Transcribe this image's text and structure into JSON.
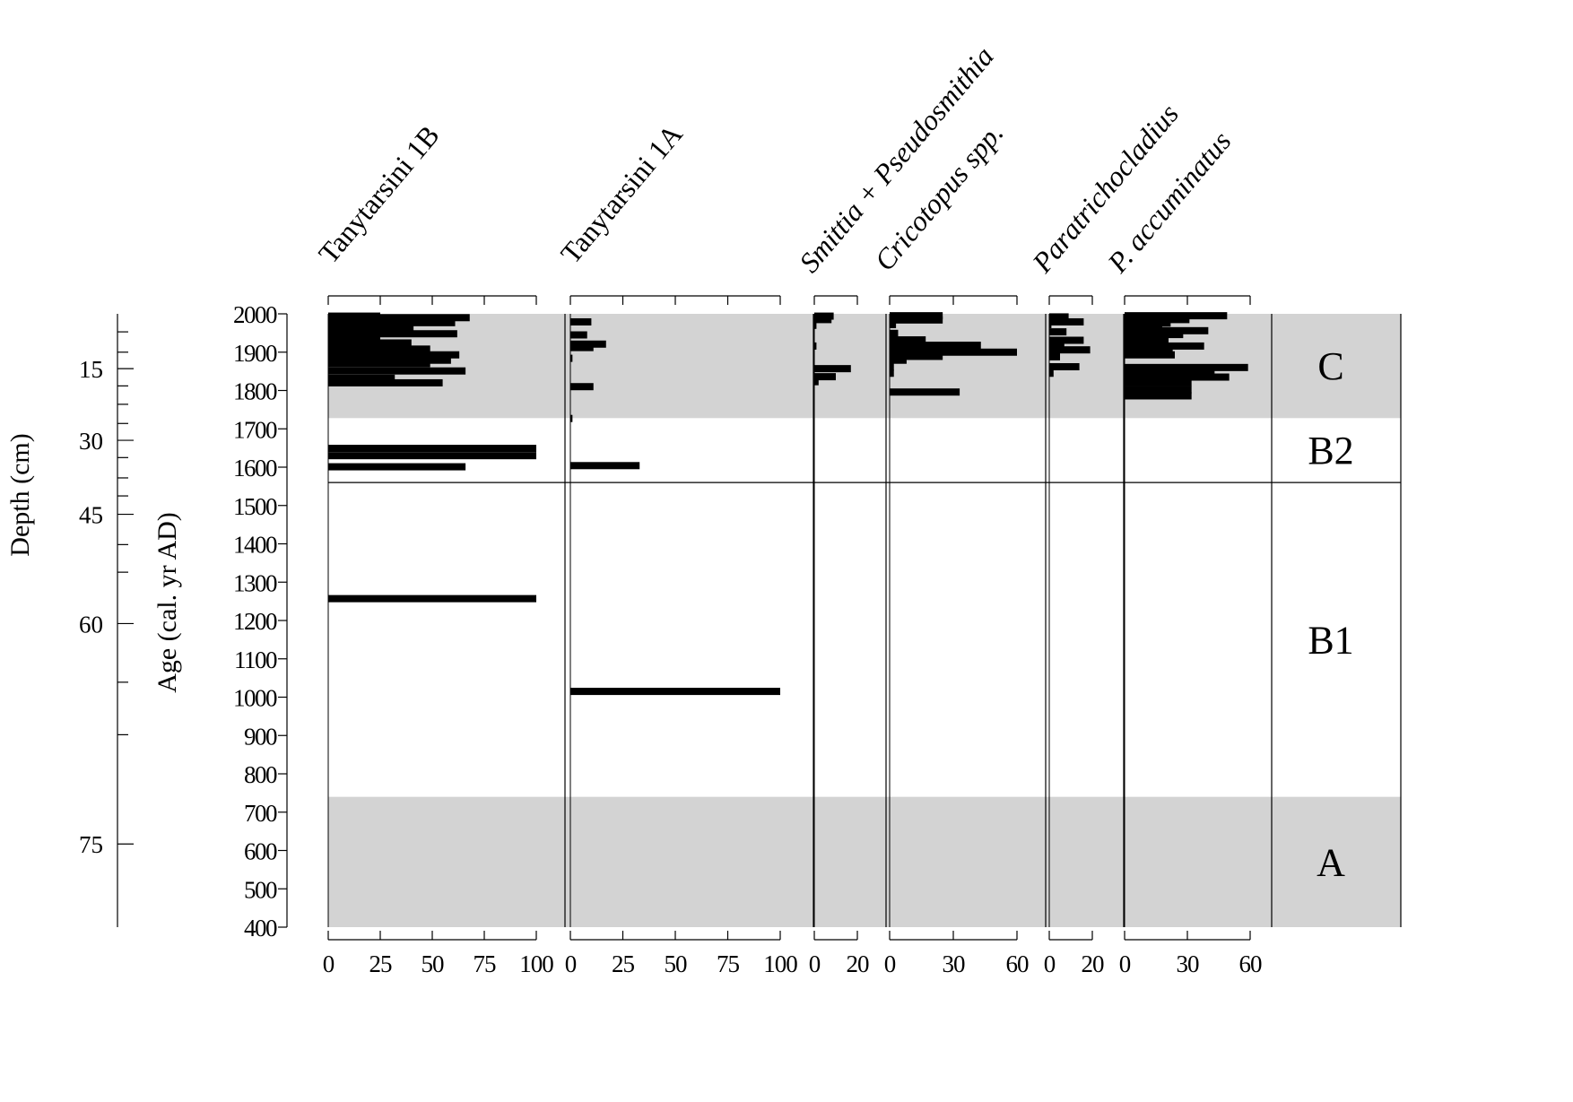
{
  "chart_data": {
    "type": "bar",
    "subtype": "stratigraphic-percentage-diagram",
    "age_axis": {
      "label": "Age (cal. yr AD)",
      "range": [
        400,
        2000
      ],
      "ticks": [
        400,
        500,
        600,
        700,
        800,
        900,
        1000,
        1100,
        1200,
        1300,
        1400,
        1500,
        1600,
        1700,
        1800,
        1900,
        2000
      ]
    },
    "depth_axis": {
      "label": "Depth (cm)",
      "ticks": [
        {
          "label": "15",
          "age": 1857
        },
        {
          "label": "30",
          "age": 1670
        },
        {
          "label": "45",
          "age": 1477
        },
        {
          "label": "60",
          "age": 1192
        },
        {
          "label": "75",
          "age": 617
        }
      ],
      "minor_ages": [
        1953,
        1900,
        1812,
        1764,
        1714,
        1625,
        1572,
        1525,
        1398,
        1326,
        1039,
        902
      ]
    },
    "zones": [
      {
        "label": "C",
        "from": 1728,
        "to": 2000,
        "shaded": true
      },
      {
        "label": "B2",
        "from": 1560,
        "to": 1728,
        "shaded": false
      },
      {
        "label": "B1",
        "from": 740,
        "to": 1560,
        "shaded": false
      },
      {
        "label": "A",
        "from": 400,
        "to": 740,
        "shaded": true
      }
    ],
    "zone_boundary_age": 1560,
    "series": [
      {
        "name": "Tanytarsini 1B",
        "italic": false,
        "xlim": [
          0,
          100
        ],
        "ticks": [
          0,
          25,
          50,
          75,
          100
        ],
        "bars": [
          {
            "age": 1994,
            "value": 25
          },
          {
            "age": 1990,
            "value": 68
          },
          {
            "age": 1985,
            "value": 30
          },
          {
            "age": 1977,
            "value": 61
          },
          {
            "age": 1970,
            "value": 0
          },
          {
            "age": 1961,
            "value": 41
          },
          {
            "age": 1955,
            "value": 23
          },
          {
            "age": 1948,
            "value": 62
          },
          {
            "age": 1942,
            "value": 25
          },
          {
            "age": 1933,
            "value": 15
          },
          {
            "age": 1924,
            "value": 40
          },
          {
            "age": 1917,
            "value": 11
          },
          {
            "age": 1908,
            "value": 49
          },
          {
            "age": 1901,
            "value": 9
          },
          {
            "age": 1893,
            "value": 63
          },
          {
            "age": 1887,
            "value": 11
          },
          {
            "age": 1879,
            "value": 59
          },
          {
            "age": 1870,
            "value": 49
          },
          {
            "age": 1851,
            "value": 66
          },
          {
            "age": 1832,
            "value": 32
          },
          {
            "age": 1820,
            "value": 55
          },
          {
            "age": 1649,
            "value": 100
          },
          {
            "age": 1630,
            "value": 100
          },
          {
            "age": 1601,
            "value": 66
          },
          {
            "age": 1257,
            "value": 100
          }
        ]
      },
      {
        "name": "Tanytarsini 1A",
        "italic": false,
        "xlim": [
          0,
          100
        ],
        "ticks": [
          0,
          25,
          50,
          75,
          100
        ],
        "bars": [
          {
            "age": 1979,
            "value": 10
          },
          {
            "age": 1945,
            "value": 8
          },
          {
            "age": 1921,
            "value": 17
          },
          {
            "age": 1912,
            "value": 11
          },
          {
            "age": 1884,
            "value": 1
          },
          {
            "age": 1810,
            "value": 11
          },
          {
            "age": 1727,
            "value": 1
          },
          {
            "age": 1604,
            "value": 33
          },
          {
            "age": 1015,
            "value": 100
          }
        ]
      },
      {
        "name": "Smittia + Pseudosmithia",
        "italic": true,
        "xlim": [
          0,
          20
        ],
        "ticks": [
          0,
          20
        ],
        "bars": [
          {
            "age": 1994,
            "value": 9
          },
          {
            "age": 1985,
            "value": 8
          },
          {
            "age": 1970,
            "value": 1
          },
          {
            "age": 1916,
            "value": 1
          },
          {
            "age": 1857,
            "value": 17
          },
          {
            "age": 1836,
            "value": 10
          },
          {
            "age": 1823,
            "value": 2
          }
        ]
      },
      {
        "name": "Cricotopus spp.",
        "italic": true,
        "xlim": [
          0,
          60
        ],
        "ticks": [
          0,
          30,
          60
        ],
        "bars": [
          {
            "age": 1995,
            "value": 25
          },
          {
            "age": 1984,
            "value": 25
          },
          {
            "age": 1972,
            "value": 3
          },
          {
            "age": 1949,
            "value": 4
          },
          {
            "age": 1932,
            "value": 17
          },
          {
            "age": 1918,
            "value": 43
          },
          {
            "age": 1900,
            "value": 60
          },
          {
            "age": 1889,
            "value": 25
          },
          {
            "age": 1879,
            "value": 8
          },
          {
            "age": 1861,
            "value": 2
          },
          {
            "age": 1845,
            "value": 2
          },
          {
            "age": 1796,
            "value": 33
          }
        ]
      },
      {
        "name": "Paratrichocladius",
        "italic": true,
        "xlim": [
          0,
          20
        ],
        "ticks": [
          0,
          20
        ],
        "bars": [
          {
            "age": 1992,
            "value": 9
          },
          {
            "age": 1979,
            "value": 16
          },
          {
            "age": 1972,
            "value": 1
          },
          {
            "age": 1953,
            "value": 8
          },
          {
            "age": 1931,
            "value": 16
          },
          {
            "age": 1918,
            "value": 7
          },
          {
            "age": 1906,
            "value": 19
          },
          {
            "age": 1888,
            "value": 5
          },
          {
            "age": 1862,
            "value": 14
          },
          {
            "age": 1845,
            "value": 2
          }
        ]
      },
      {
        "name": "P. accuminatus",
        "italic": true,
        "xlim": [
          0,
          60
        ],
        "ticks": [
          0,
          30,
          60
        ],
        "bars": [
          {
            "age": 1995,
            "value": 49
          },
          {
            "age": 1985,
            "value": 31
          },
          {
            "age": 1976,
            "value": 22
          },
          {
            "age": 1968,
            "value": 18
          },
          {
            "age": 1956,
            "value": 40
          },
          {
            "age": 1946,
            "value": 28
          },
          {
            "age": 1930,
            "value": 21
          },
          {
            "age": 1916,
            "value": 38
          },
          {
            "age": 1904,
            "value": 23
          },
          {
            "age": 1893,
            "value": 24
          },
          {
            "age": 1860,
            "value": 59
          },
          {
            "age": 1848,
            "value": 43
          },
          {
            "age": 1835,
            "value": 50
          },
          {
            "age": 1820,
            "value": 32
          },
          {
            "age": 1802,
            "value": 32
          },
          {
            "age": 1786,
            "value": 32
          }
        ]
      }
    ]
  }
}
